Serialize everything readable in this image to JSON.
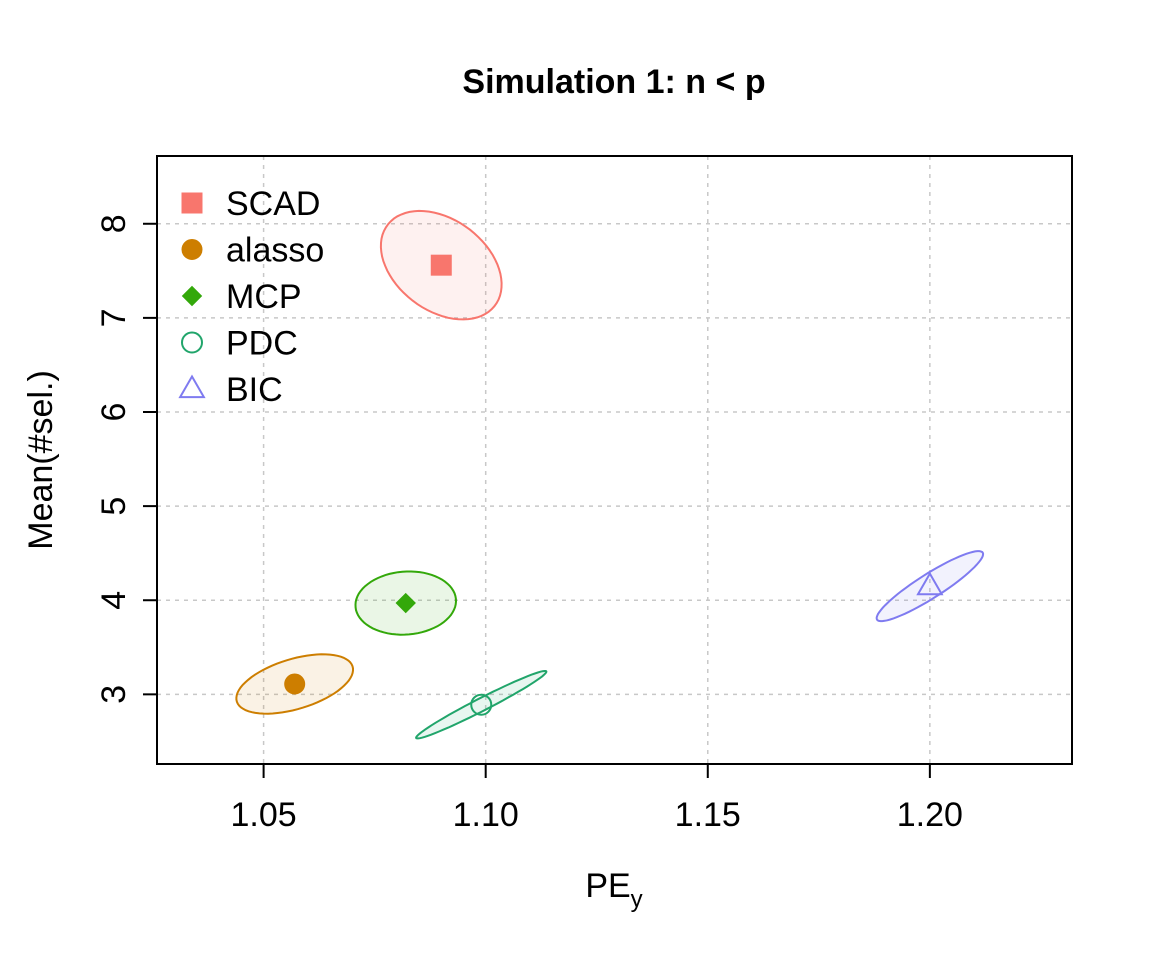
{
  "chart_data": {
    "type": "scatter",
    "title": "Simulation 1: n < p",
    "xlabel": {
      "main": "PE",
      "sub": "y"
    },
    "ylabel": "Mean(#sel.)",
    "xlim": [
      1.026,
      1.232
    ],
    "ylim": [
      2.26,
      8.72
    ],
    "xticks": [
      1.05,
      1.1,
      1.15,
      1.2
    ],
    "xtick_labels": [
      "1.05",
      "1.10",
      "1.15",
      "1.20"
    ],
    "yticks": [
      3,
      4,
      5,
      6,
      7,
      8
    ],
    "ytick_labels": [
      "3",
      "4",
      "5",
      "6",
      "7",
      "8"
    ],
    "grid": true,
    "legend_position": "top-left",
    "series": [
      {
        "name": "SCAD",
        "marker": "square",
        "color": "#F8766D",
        "filled": true,
        "x": 1.09,
        "y": 7.56,
        "ellipse": {
          "rx": 0.012,
          "ry": 0.61,
          "rot": 0.43
        }
      },
      {
        "name": "alasso",
        "marker": "circle",
        "color": "#CD7E00",
        "filled": true,
        "x": 1.057,
        "y": 3.11,
        "ellipse": {
          "rx": 0.0145,
          "ry": 0.25,
          "rot": 0.53
        }
      },
      {
        "name": "MCP",
        "marker": "diamond",
        "color": "#33A80A",
        "filled": true,
        "x": 1.082,
        "y": 3.97,
        "ellipse": {
          "rx": 0.0115,
          "ry": 0.33,
          "rot": 0.45
        }
      },
      {
        "name": "PDC",
        "marker": "circle",
        "color": "#21A56B",
        "filled": false,
        "x": 1.099,
        "y": 2.89,
        "ellipse": {
          "rx": 0.0185,
          "ry": 0.06,
          "rot": 0.66
        }
      },
      {
        "name": "BIC",
        "marker": "triangle",
        "color": "#7F7BF0",
        "filled": false,
        "x": 1.2,
        "y": 4.15,
        "ellipse": {
          "rx": 0.0165,
          "ry": 0.11,
          "rot": 0.78
        }
      }
    ]
  }
}
